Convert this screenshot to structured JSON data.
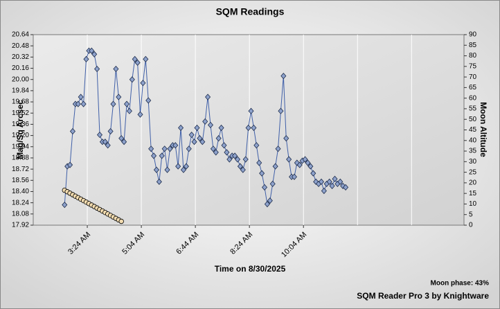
{
  "chart_data": {
    "type": "line",
    "title": "SQM Readings",
    "x_label": "Time on 8/30/2025",
    "y_label": "Mag/Sq Arcsec",
    "y2_label": "Moon Altitude",
    "moon_phase": "Moon phase: 43%",
    "footer": "SQM Reader Pro 3 by Knightware",
    "xlim": [
      104,
      901
    ],
    "xticks": [
      {
        "value": 204,
        "label": "3:24 AM"
      },
      {
        "value": 304,
        "label": "5:04 AM"
      },
      {
        "value": 404,
        "label": "6:44 AM"
      },
      {
        "value": 504,
        "label": "8:24 AM"
      },
      {
        "value": 604,
        "label": "10:04 AM"
      }
    ],
    "ylim": [
      17.92,
      20.64
    ],
    "yticks": [
      17.92,
      18.08,
      18.24,
      {
        "value": 18.4,
        "label": "18.40"
      },
      18.56,
      18.72,
      18.88,
      19.04,
      {
        "value": 19.2,
        "label": "19.20"
      },
      19.36,
      19.52,
      19.68,
      19.84,
      {
        "value": 20,
        "label": "20.00"
      },
      20.16,
      20.32,
      20.48,
      20.64
    ],
    "y2lim": [
      0,
      90
    ],
    "y2ticks": [
      0,
      5,
      10,
      15,
      20,
      25,
      30,
      35,
      40,
      45,
      50,
      55,
      60,
      65,
      70,
      75,
      80,
      85,
      90
    ],
    "grid": true,
    "series": [
      {
        "color": "#3f5fa8",
        "marker_color": "#8ea2cc",
        "marker": "diamond",
        "x": [
          162,
          167,
          172,
          177,
          182,
          187,
          192,
          197,
          202,
          207,
          212,
          217,
          222,
          227,
          232,
          237,
          242,
          247,
          252,
          257,
          262,
          267,
          272,
          277,
          282,
          287,
          292,
          297,
          302,
          307,
          312,
          317,
          322,
          327,
          332,
          337,
          342,
          347,
          352,
          357,
          362,
          367,
          372,
          377,
          382,
          387,
          392,
          397,
          402,
          407,
          412,
          417,
          422,
          427,
          432,
          437,
          442,
          447,
          452,
          457,
          462,
          467,
          472,
          477,
          482,
          487,
          492,
          497,
          502,
          507,
          512,
          517,
          522,
          527,
          532,
          537,
          542,
          547,
          552,
          557,
          562,
          567,
          572,
          577,
          582,
          587,
          592,
          597,
          602,
          607,
          612,
          617,
          622,
          627,
          632,
          637,
          642,
          647,
          652,
          657,
          662,
          667,
          672,
          677,
          682
        ],
        "values": [
          18.21,
          18.76,
          18.78,
          19.26,
          19.65,
          19.65,
          19.75,
          19.65,
          20.29,
          20.41,
          20.41,
          20.36,
          20.15,
          19.21,
          19.11,
          19.11,
          19.06,
          19.26,
          19.65,
          20.15,
          19.75,
          19.16,
          19.11,
          19.65,
          19.55,
          20,
          20.29,
          20.24,
          19.5,
          19.95,
          20.29,
          19.7,
          19.01,
          18.91,
          18.71,
          18.54,
          18.91,
          19.01,
          18.71,
          19.01,
          19.06,
          19.06,
          18.76,
          19.31,
          18.71,
          18.76,
          19.01,
          19.21,
          19.11,
          19.31,
          19.16,
          19.11,
          19.4,
          19.75,
          19.35,
          19.01,
          18.96,
          19.16,
          19.31,
          19.06,
          18.96,
          18.86,
          18.91,
          18.91,
          18.86,
          18.76,
          18.71,
          18.86,
          19.31,
          19.55,
          19.31,
          19.06,
          18.81,
          18.66,
          18.46,
          18.22,
          18.27,
          18.51,
          18.76,
          19.01,
          19.55,
          20.05,
          19.16,
          18.86,
          18.61,
          18.61,
          18.81,
          18.78,
          18.84,
          18.86,
          18.81,
          18.76,
          18.66,
          18.54,
          18.51,
          18.54,
          18.41,
          18.51,
          18.54,
          18.48,
          18.58,
          18.51,
          18.54,
          18.48,
          18.46
        ]
      },
      {
        "color": "#000000",
        "marker_color": "#f3dcb0",
        "marker": "circle",
        "axis": "y2",
        "x": [
          162,
          167,
          172,
          177,
          182,
          187,
          192,
          197,
          202,
          207,
          212,
          217,
          222,
          227,
          232,
          237,
          242,
          247,
          252,
          257,
          262,
          267
        ],
        "values": [
          16.5,
          15.8,
          15.1,
          14.4,
          13.7,
          13,
          12.3,
          11.6,
          10.9,
          10.2,
          9.5,
          8.8,
          8.1,
          7.4,
          6.7,
          6,
          5.3,
          4.6,
          3.9,
          3.2,
          2.5,
          1.8
        ]
      }
    ]
  }
}
